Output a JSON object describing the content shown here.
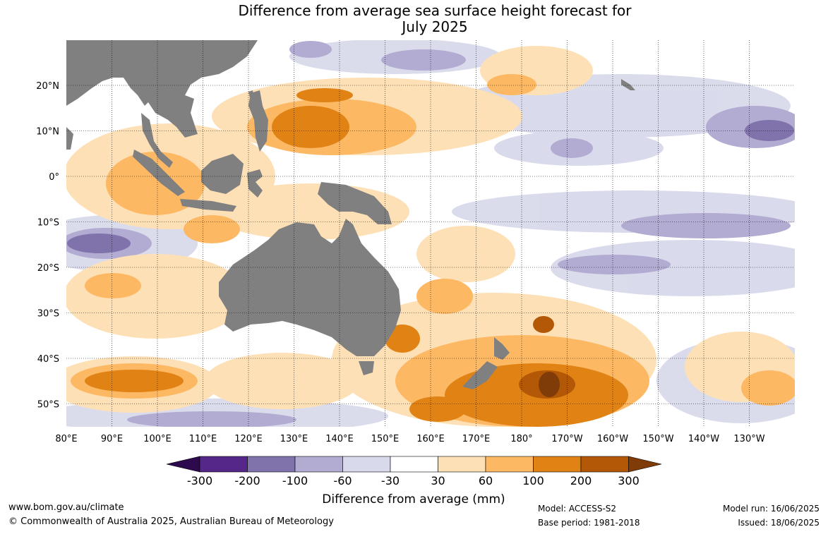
{
  "title": {
    "line1": "Difference from average sea surface height forecast for",
    "line2": "July 2025"
  },
  "axes": {
    "lon_labels": [
      "80°E",
      "90°E",
      "100°E",
      "110°E",
      "120°E",
      "130°E",
      "140°E",
      "150°E",
      "160°E",
      "170°E",
      "180°",
      "170°W",
      "160°W",
      "150°W",
      "140°W",
      "130°W"
    ],
    "lat_labels": [
      "20°N",
      "10°N",
      "0°",
      "10°S",
      "20°S",
      "30°S",
      "40°S",
      "50°S"
    ]
  },
  "colors": {
    "land": "#808080",
    "neg_300": "#2d0a4e",
    "neg_200": "#542788",
    "neg_100": "#8073ac",
    "neg_60": "#b2abd2",
    "neg_30": "#d8daeb",
    "neutral": "#ffffff",
    "pos_30": "#fee0b6",
    "pos_60": "#fdb863",
    "pos_100": "#e08214",
    "pos_200": "#b35806",
    "pos_300": "#7f3b08"
  },
  "legend": {
    "tick_labels": [
      "-300",
      "-200",
      "-100",
      "-60",
      "-30",
      "30",
      "60",
      "100",
      "200",
      "300"
    ],
    "title": "Difference from average (mm)"
  },
  "footer": {
    "website": "www.bom.gov.au/climate",
    "copyright": "© Commonwealth of Australia 2025, Australian Bureau of Meteorology",
    "model": "Model: ACCESS-S2",
    "base_period": "Base period: 1981-2018",
    "model_run": "Model run: 16/06/2025",
    "issued": "Issued: 18/06/2025"
  }
}
